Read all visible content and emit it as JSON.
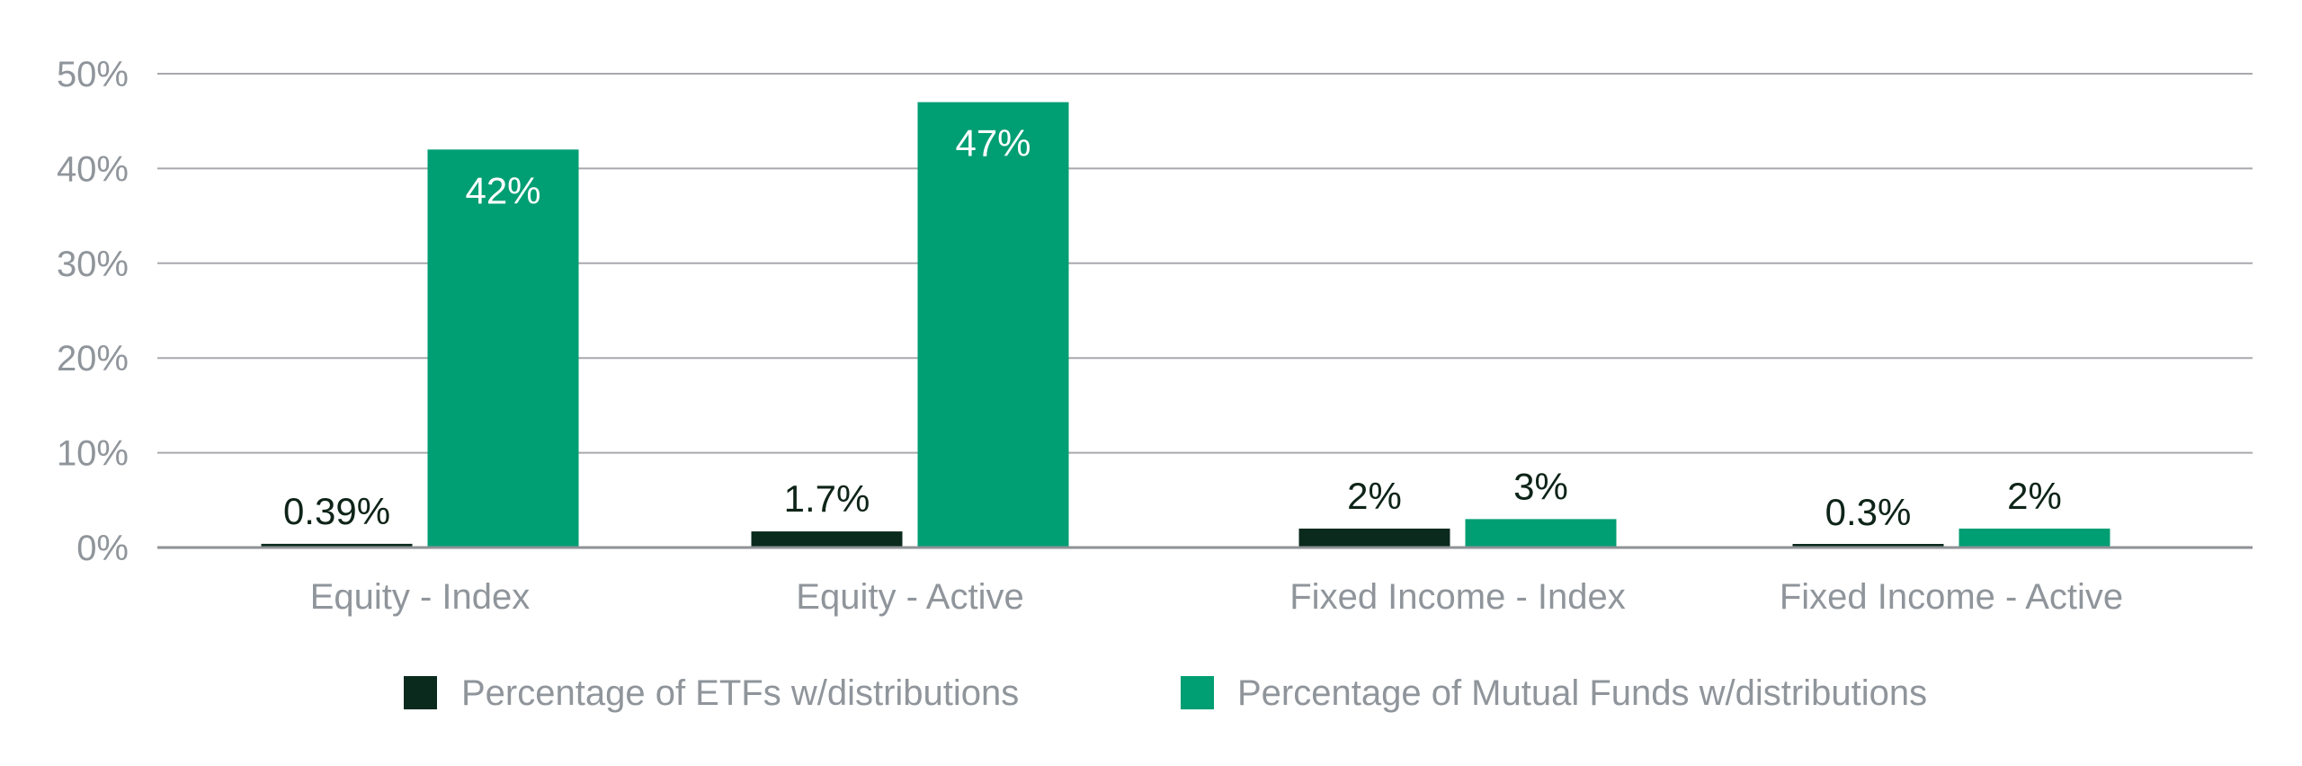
{
  "chart_data": {
    "type": "bar",
    "categories": [
      "Equity - Index",
      "Equity - Active",
      "Fixed Income - Index",
      "Fixed Income - Active"
    ],
    "series": [
      {
        "name": "Percentage of ETFs w/distributions",
        "values": [
          0.39,
          1.7,
          2,
          0.3
        ],
        "labels": [
          "0.39%",
          "1.7%",
          "2%",
          "0.3%"
        ],
        "color": "#0b2a1e"
      },
      {
        "name": "Percentage of Mutual Funds w/distributions",
        "values": [
          42,
          47,
          3,
          2
        ],
        "labels": [
          "42%",
          "47%",
          "3%",
          "2%"
        ],
        "color": "#009e73"
      }
    ],
    "yticks": [
      "0%",
      "10%",
      "20%",
      "30%",
      "40%",
      "50%"
    ],
    "ylim": [
      0,
      50
    ],
    "grid": true,
    "legend_position": "bottom-center",
    "title": "",
    "xlabel": "",
    "ylabel": ""
  }
}
